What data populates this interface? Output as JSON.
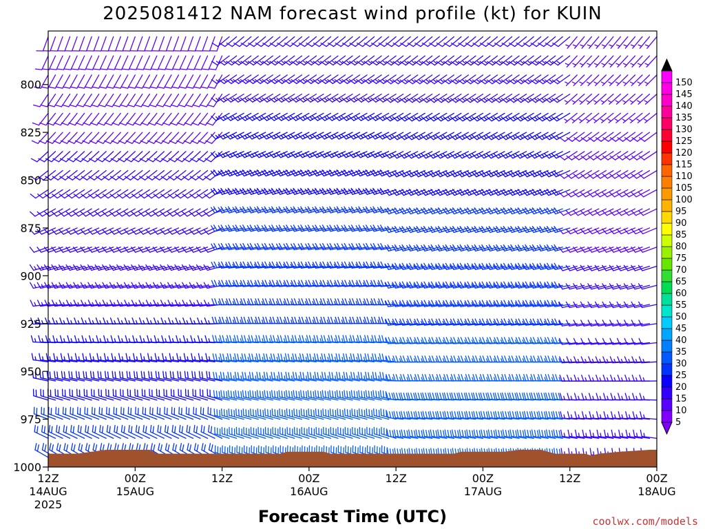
{
  "chart_data": {
    "type": "wind-barb-time-height",
    "title": "2025081412 NAM forecast wind profile (kt) for KUIN",
    "xlabel": "Forecast Time (UTC)",
    "ylabel": "",
    "x_ticks": [
      {
        "hour": 0,
        "label": "12Z",
        "date": "14AUG",
        "year": "2025"
      },
      {
        "hour": 12,
        "label": "00Z",
        "date": "15AUG",
        "year": ""
      },
      {
        "hour": 24,
        "label": "12Z",
        "date": "",
        "year": ""
      },
      {
        "hour": 36,
        "label": "00Z",
        "date": "16AUG",
        "year": ""
      },
      {
        "hour": 48,
        "label": "12Z",
        "date": "",
        "year": ""
      },
      {
        "hour": 60,
        "label": "00Z",
        "date": "17AUG",
        "year": ""
      },
      {
        "hour": 72,
        "label": "12Z",
        "date": "",
        "year": ""
      },
      {
        "hour": 84,
        "label": "00Z",
        "date": "18AUG",
        "year": ""
      }
    ],
    "y_ticks": [
      800,
      825,
      850,
      875,
      900,
      925,
      950,
      975,
      1000
    ],
    "xlim_hours": [
      0,
      84
    ],
    "ylim_hPa": [
      772,
      1000
    ],
    "legend": {
      "placement": "right",
      "labels": [
        5,
        10,
        15,
        20,
        25,
        30,
        35,
        40,
        45,
        50,
        55,
        60,
        65,
        70,
        75,
        80,
        85,
        90,
        95,
        100,
        105,
        110,
        115,
        120,
        125,
        130,
        135,
        140,
        145,
        150
      ],
      "colors": [
        "#7f00ff",
        "#5a00ff",
        "#3300ff",
        "#0a00ff",
        "#0033ff",
        "#0059ff",
        "#007fff",
        "#00a6ff",
        "#00ccff",
        "#00e5cc",
        "#00e099",
        "#00dd55",
        "#33dd33",
        "#66e600",
        "#99f000",
        "#ccff00",
        "#ffff00",
        "#ffd900",
        "#ffb300",
        "#ff9900",
        "#ff8000",
        "#ff6600",
        "#ff3300",
        "#ff0000",
        "#ff0033",
        "#ff0066",
        "#ff0099",
        "#ff00cc",
        "#ff00e5",
        "#ff00ff"
      ]
    },
    "terrain": {
      "color": "#a0522d",
      "points": [
        [
          0,
          993
        ],
        [
          4,
          993
        ],
        [
          6,
          992
        ],
        [
          8,
          991
        ],
        [
          14,
          991
        ],
        [
          15,
          993
        ],
        [
          32,
          993
        ],
        [
          33,
          992
        ],
        [
          38,
          992
        ],
        [
          39,
          993
        ],
        [
          56,
          993
        ],
        [
          57,
          992
        ],
        [
          63,
          992
        ],
        [
          65,
          991
        ],
        [
          68,
          991
        ],
        [
          70,
          993
        ],
        [
          74,
          993
        ],
        [
          75,
          994
        ],
        [
          76,
          993
        ],
        [
          79,
          992
        ],
        [
          83,
          991
        ],
        [
          84,
          991
        ]
      ]
    },
    "wind_field": {
      "time_step_hours": 1,
      "pressure_levels_hPa": [
        775,
        785,
        795,
        805,
        815,
        825,
        835,
        845,
        855,
        865,
        875,
        885,
        895,
        905,
        915,
        925,
        935,
        945,
        955,
        965,
        975,
        985,
        995
      ],
      "segments": [
        {
          "hours": [
            0,
            24
          ],
          "speed_kt": [
            8,
            12,
            22
          ],
          "direction_deg": [
            200,
            250,
            300
          ]
        },
        {
          "hours": [
            24,
            48
          ],
          "speed_kt": [
            12,
            22,
            30
          ],
          "direction_deg": [
            230,
            260,
            290
          ]
        },
        {
          "hours": [
            48,
            72
          ],
          "speed_kt": [
            12,
            22,
            30
          ],
          "direction_deg": [
            230,
            255,
            280
          ]
        },
        {
          "hours": [
            72,
            84
          ],
          "speed_kt": [
            6,
            10,
            15
          ],
          "direction_deg": [
            220,
            250,
            280
          ]
        }
      ]
    }
  },
  "footer": {
    "source": "coolwx.com/models"
  }
}
